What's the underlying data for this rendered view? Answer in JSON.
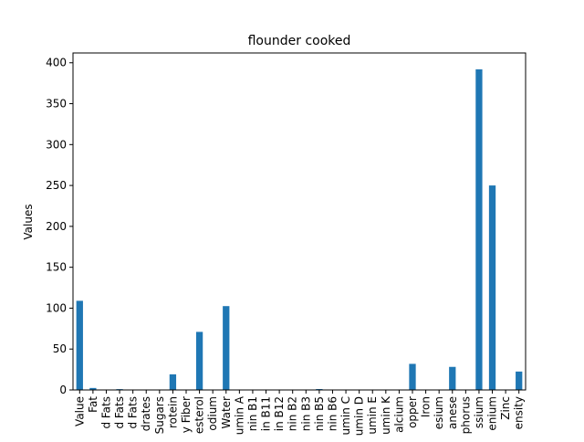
{
  "chart_data": {
    "type": "bar",
    "title": "flounder cooked",
    "xlabel": "",
    "ylabel": "Values",
    "ylim": [
      0,
      412
    ],
    "yticks": [
      0,
      50,
      100,
      150,
      200,
      250,
      300,
      350,
      400
    ],
    "grid": false,
    "color": "#1f77b4",
    "categories": [
      "Value",
      "Fat",
      "d Fats",
      "d Fats",
      "d Fats",
      "drates",
      "Sugars",
      "rotein",
      "y Fiber",
      "esterol",
      "odium",
      "Water",
      "umin A",
      "nin B1",
      "in B11",
      "in B12",
      "nin B2",
      "nin B3",
      "nin B5",
      "nin B6",
      "umin C",
      "umin D",
      "umin E",
      "umin K",
      "alcium",
      "opper",
      "Iron",
      "esium",
      "anese",
      "phorus",
      "ssium",
      "enium",
      "Zinc",
      "ensity"
    ],
    "values": [
      109,
      2.4,
      0.5,
      1.0,
      0.2,
      0,
      0,
      19.1,
      0,
      71,
      0.3,
      102.5,
      0.01,
      0.02,
      0,
      0.4,
      0.1,
      0.5,
      1.1,
      0.2,
      0.4,
      0,
      0.4,
      0.3,
      0.3,
      31.9,
      0.2,
      0.5,
      28.2,
      0.1,
      392,
      250,
      0.4,
      22.5
    ]
  }
}
